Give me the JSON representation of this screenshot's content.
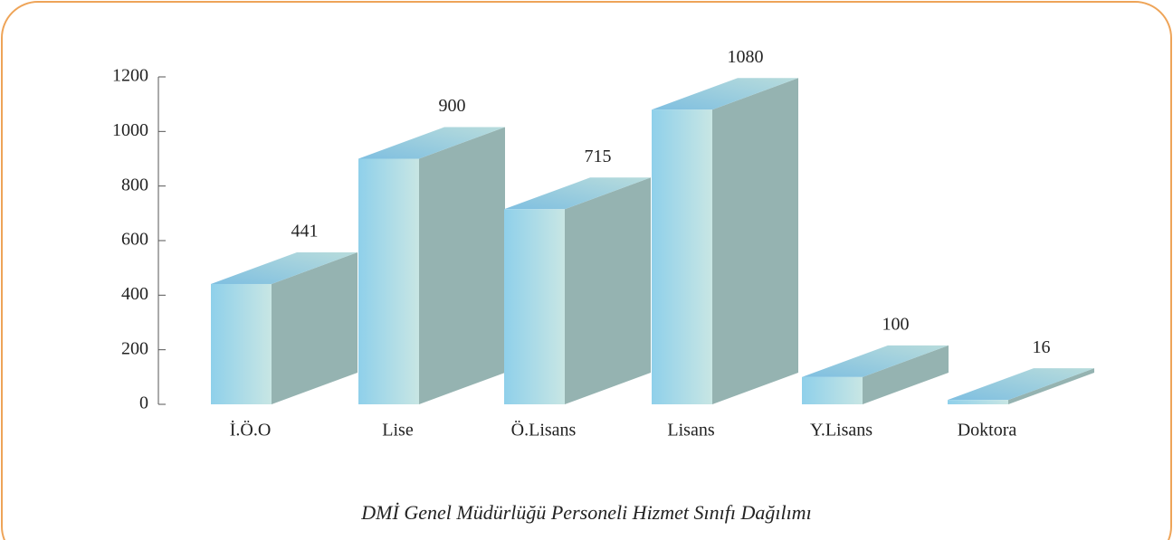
{
  "chart_data": {
    "type": "bar3d",
    "title": "DMİ Genel Müdürlüğü Personeli Hizmet Sınıfı Dağılımı",
    "categories": [
      "İ.Ö.O",
      "Lise",
      "Ö.Lisans",
      "Lisans",
      "Y.Lisans",
      "Doktora"
    ],
    "values": [
      441,
      900,
      715,
      1080,
      100,
      16
    ],
    "color": "#8fd0ea",
    "ylim": [
      0,
      1200
    ],
    "yticks": [
      0,
      200,
      400,
      600,
      800,
      1000,
      1200
    ]
  }
}
